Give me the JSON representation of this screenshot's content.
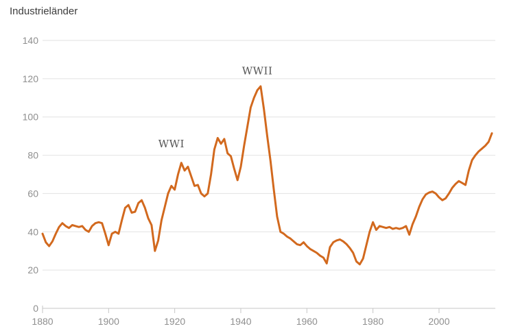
{
  "header": {
    "title": "Industrieländer"
  },
  "chart_data": {
    "type": "line",
    "title": "Industrieländer",
    "xlabel": "",
    "ylabel": "",
    "x_start": 1880,
    "x_end": 2016,
    "x_step": 1,
    "x_tick_years": [
      1880,
      1900,
      1920,
      1940,
      1960,
      1980,
      2000
    ],
    "x_tick_labels": [
      "1880",
      "1900",
      "1920",
      "1940",
      "1960",
      "1980",
      "2000"
    ],
    "y_ticks": [
      0,
      20,
      40,
      60,
      80,
      100,
      120,
      140
    ],
    "ylim": [
      0,
      140
    ],
    "grid": "horizontal",
    "legend_position": "none",
    "line_color": "#d2691e",
    "grid_color": "#e2e2e2",
    "axis_color": "#c6c6c6",
    "label_color": "#8f8f8f",
    "annotation_color": "#545454",
    "series": [
      {
        "name": "Industrieländer",
        "values": [
          39,
          34.5,
          32.5,
          35,
          39,
          42.5,
          44.5,
          43,
          42,
          43.5,
          43,
          42.5,
          43,
          41,
          40,
          43,
          44.5,
          45,
          44.5,
          39,
          33,
          39,
          40,
          39,
          46,
          52.5,
          54,
          50,
          50.5,
          55,
          56.5,
          52.5,
          47,
          43.5,
          30,
          35.5,
          46,
          53,
          60,
          64,
          62,
          70,
          76,
          72,
          74,
          69,
          64,
          64.5,
          60,
          58.5,
          60,
          70,
          83,
          89,
          86,
          88.5,
          81,
          79.5,
          73,
          67,
          74,
          85,
          95,
          105,
          110,
          114,
          116,
          104,
          90,
          77,
          62,
          48,
          40,
          39,
          37.5,
          36.5,
          35,
          33.5,
          33,
          34.5,
          32.5,
          31,
          30,
          29,
          27.5,
          26.5,
          23.5,
          32,
          34.5,
          35.5,
          36,
          35,
          33.5,
          31.5,
          29,
          24.5,
          23,
          26,
          33,
          40,
          45,
          41,
          43,
          42.5,
          42,
          42.5,
          41.5,
          42,
          41.5,
          42,
          43,
          38.5,
          44,
          48,
          53,
          57,
          59.5,
          60.5,
          61,
          60,
          58,
          56.5,
          57.5,
          60,
          63,
          65,
          66.5,
          65.5,
          64.5,
          72,
          77.5,
          80,
          82,
          83.5,
          85,
          87,
          91.5
        ]
      }
    ],
    "annotations": [
      {
        "label": "WWI",
        "year": 1919,
        "value": 86
      },
      {
        "label": "WWII",
        "year": 1945,
        "value": 124
      }
    ]
  }
}
